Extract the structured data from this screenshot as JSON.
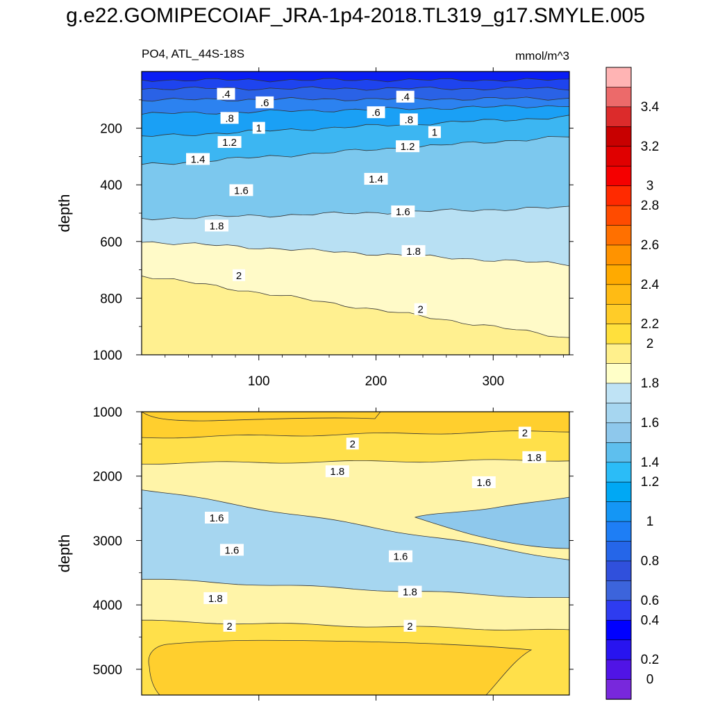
{
  "title": "g.e22.GOMIPECOIAF_JRA-1p4-2018.TL319_g17.SMYLE.005",
  "chart_data": [
    {
      "type": "contour",
      "panel": "upper",
      "left_label": "PO4, ATL_44S-18S",
      "right_label": "mmol/m^3",
      "xlabel": "",
      "ylabel": "depth",
      "xlim": [
        0,
        365
      ],
      "ylim": [
        1000,
        0
      ],
      "xticks": [
        "100",
        "200",
        "300"
      ],
      "yticks": [
        "200",
        "400",
        "600",
        "800",
        "1000"
      ],
      "contours": [
        {
          "level": 0.4,
          "depth_start": 30,
          "depth_end": 30
        },
        {
          "level": 0.6,
          "depth_start": 60,
          "depth_end": 60
        },
        {
          "level": 0.8,
          "depth_start": 100,
          "depth_end": 95
        },
        {
          "level": 1.0,
          "depth_start": 150,
          "depth_end": 120
        },
        {
          "level": 1.2,
          "depth_start": 230,
          "depth_end": 160
        },
        {
          "level": 1.4,
          "depth_start": 330,
          "depth_end": 230
        },
        {
          "level": 1.6,
          "depth_start": 520,
          "depth_end": 480
        },
        {
          "level": 1.8,
          "depth_start": 600,
          "depth_end": 680
        },
        {
          "level": 2.0,
          "depth_start": 720,
          "depth_end": 940
        }
      ],
      "contour_labels": [
        {
          "text": ".4",
          "x": 72,
          "depth": 80
        },
        {
          "text": ".6",
          "x": 105,
          "depth": 110
        },
        {
          "text": ".8",
          "x": 75,
          "depth": 165
        },
        {
          "text": "1",
          "x": 100,
          "depth": 200
        },
        {
          "text": "1.2",
          "x": 75,
          "depth": 250
        },
        {
          "text": "1.4",
          "x": 48,
          "depth": 310
        },
        {
          "text": "1.6",
          "x": 85,
          "depth": 420
        },
        {
          "text": "1.8",
          "x": 64,
          "depth": 545
        },
        {
          "text": "2",
          "x": 83,
          "depth": 720
        },
        {
          "text": ".4",
          "x": 225,
          "depth": 90
        },
        {
          "text": ".6",
          "x": 200,
          "depth": 145
        },
        {
          "text": ".8",
          "x": 228,
          "depth": 170
        },
        {
          "text": "1",
          "x": 250,
          "depth": 215
        },
        {
          "text": "1.2",
          "x": 227,
          "depth": 265
        },
        {
          "text": "1.4",
          "x": 200,
          "depth": 380
        },
        {
          "text": "1.6",
          "x": 223,
          "depth": 495
        },
        {
          "text": "1.8",
          "x": 232,
          "depth": 635
        },
        {
          "text": "2",
          "x": 238,
          "depth": 840
        }
      ]
    },
    {
      "type": "contour",
      "panel": "lower",
      "xlabel": "",
      "ylabel": "depth",
      "xlim": [
        0,
        365
      ],
      "ylim": [
        5400,
        1000
      ],
      "yticks": [
        "1000",
        "2000",
        "3000",
        "4000",
        "5000"
      ],
      "contours": [
        {
          "level": 2.0,
          "depth_start": 1400,
          "depth_end": 1300
        },
        {
          "level": 1.8,
          "depth_start": 1800,
          "depth_end": 1750
        },
        {
          "level": 1.6,
          "depth_start": 2200,
          "depth_end": 3300
        },
        {
          "level": 1.8,
          "depth_start": 3600,
          "depth_end": 3900
        },
        {
          "level": 2.0,
          "depth_start": 4250,
          "depth_end": 4400
        }
      ],
      "contour_labels": [
        {
          "text": "2",
          "x": 180,
          "depth": 1500
        },
        {
          "text": "2",
          "x": 327,
          "depth": 1330
        },
        {
          "text": "1.8",
          "x": 167,
          "depth": 1930
        },
        {
          "text": "1.8",
          "x": 335,
          "depth": 1710
        },
        {
          "text": "1.6",
          "x": 292,
          "depth": 2100
        },
        {
          "text": "1.6",
          "x": 64,
          "depth": 2650
        },
        {
          "text": "1.6",
          "x": 77,
          "depth": 3150
        },
        {
          "text": "1.6",
          "x": 221,
          "depth": 3250
        },
        {
          "text": "1.8",
          "x": 63,
          "depth": 3900
        },
        {
          "text": "1.8",
          "x": 229,
          "depth": 3800
        },
        {
          "text": "2",
          "x": 75,
          "depth": 4330
        },
        {
          "text": "2",
          "x": 229,
          "depth": 4330
        }
      ]
    }
  ],
  "colorbar": {
    "labels": [
      "3.4",
      "3.2",
      "3",
      "2.8",
      "2.6",
      "2.4",
      "2.2",
      "2",
      "1.8",
      "1.6",
      "1.4",
      "1.2",
      "1",
      "0.8",
      "0.6",
      "0.4",
      "0.2",
      "0"
    ],
    "label_values": [
      3.4,
      3.2,
      3.0,
      2.8,
      2.6,
      2.4,
      2.2,
      2.0,
      1.8,
      1.6,
      1.4,
      1.2,
      1.0,
      0.8,
      0.6,
      0.4,
      0.2,
      0.0
    ],
    "colors_top_to_bottom": [
      "#ffb4b4",
      "#ec6a6a",
      "#dc2b2b",
      "#c80000",
      "#e00000",
      "#f50000",
      "#ff2a00",
      "#ff4b00",
      "#ff7000",
      "#ff9300",
      "#ffaa00",
      "#ffbb14",
      "#ffcc28",
      "#ffe03c",
      "#fff08c",
      "#ffffc8",
      "#bfe3f5",
      "#a6d6f0",
      "#8ec8ec",
      "#5ebfee",
      "#2bbcf7",
      "#00a8f4",
      "#1496f5",
      "#1e7ef5",
      "#2566e9",
      "#3050dc",
      "#3c64dc",
      "#2e3cf0",
      "#0000ff",
      "#2814f0",
      "#5014e6",
      "#7828dc"
    ]
  }
}
